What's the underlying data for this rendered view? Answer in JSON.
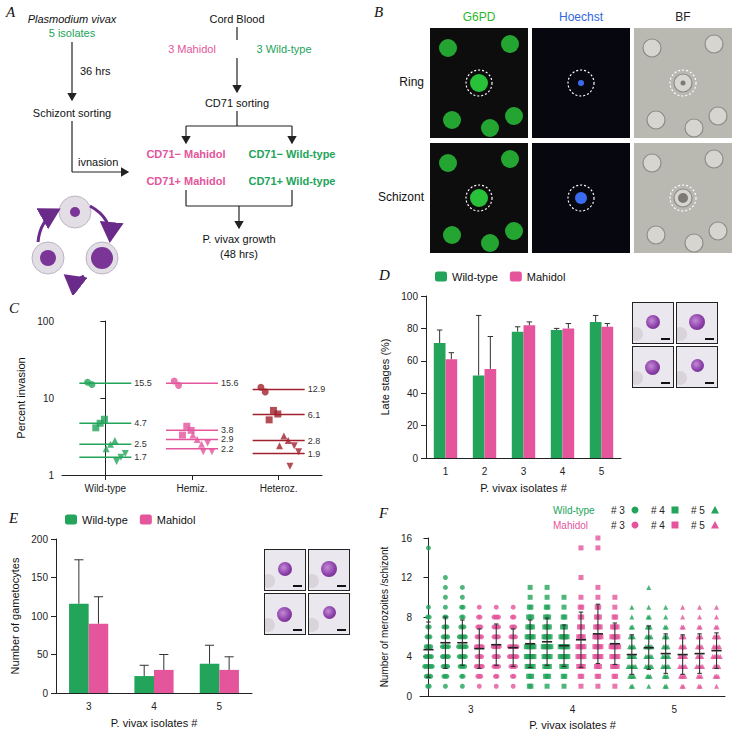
{
  "diagram": {
    "title": "A",
    "parasite": {
      "name": "Plasmodium vivax",
      "count": "5 isolates"
    },
    "culture_time": "36 hrs",
    "schizont_step": "Schizont sorting",
    "invasion_step": "ivnasion",
    "blood": {
      "name": "Cord Blood",
      "donors": [
        "3 Mahidol",
        "3 Wild-type"
      ]
    },
    "blood_step": "CD71 sorting",
    "groups": [
      "CD71− Mahidol",
      "CD71− Wild-type",
      "CD71+ Mahidol",
      "CD71+ Wild-type"
    ],
    "readout": [
      "P. vivax growth",
      "(48 hrs)"
    ]
  },
  "images": {
    "title": "B",
    "columns": [
      "G6PD",
      "Hoechst",
      "BF"
    ],
    "rows": [
      "Ring",
      "Schizont"
    ]
  },
  "chart_data": [
    {
      "title": "C",
      "type": "scatter",
      "ylabel": "Percent invasion",
      "log": "y",
      "ylim": [
        1,
        100
      ],
      "yticks": [
        1,
        10,
        100
      ],
      "grid": false,
      "categories": [
        "Wild-type",
        "Hemiz.",
        "Heteroz."
      ],
      "series": [
        {
          "color": "#22a45a",
          "groups": [
            {
              "marker": "circle",
              "values": [
                16.0,
                15.0
              ],
              "mean": 15.5
            },
            {
              "marker": "square",
              "values": [
                4.1,
                4.7,
                5.3
              ],
              "mean": 4.7
            },
            {
              "marker": "triangle",
              "values": [
                2.2,
                2.5,
                2.8
              ],
              "mean": 2.5
            },
            {
              "marker": "triangle-down",
              "values": [
                1.5,
                1.7,
                1.9
              ],
              "mean": 1.7
            }
          ]
        },
        {
          "color": "#e4559b",
          "groups": [
            {
              "marker": "circle",
              "values": [
                16.6,
                14.6
              ],
              "mean": 15.6
            },
            {
              "marker": "square",
              "values": [
                3.3,
                4.3,
                3.8
              ],
              "mean": 3.8
            },
            {
              "marker": "triangle",
              "values": [
                3.3,
                2.9,
                2.5
              ],
              "mean": 2.9
            },
            {
              "marker": "triangle-down",
              "values": [
                2.0,
                2.6,
                2.0
              ],
              "mean": 2.2
            }
          ]
        },
        {
          "color": "#a0202c",
          "groups": [
            {
              "marker": "circle",
              "values": [
                13.8,
                12.0
              ],
              "mean": 12.9
            },
            {
              "marker": "square",
              "values": [
                5.2,
                6.9,
                6.2
              ],
              "mean": 6.1
            },
            {
              "marker": "triangle",
              "values": [
                2.4,
                3.2,
                2.8
              ],
              "mean": 2.8
            },
            {
              "marker": "triangle-down",
              "values": [
                1.3,
                2.4,
                2.0
              ],
              "mean": 1.9
            }
          ]
        }
      ]
    },
    {
      "title": "D",
      "type": "bar",
      "xlabel": "P. vivax isolates #",
      "ylabel": "Late stages (%)",
      "categories": [
        "1",
        "2",
        "3",
        "4",
        "5"
      ],
      "ylim": [
        0,
        100
      ],
      "yticks": [
        0,
        20,
        40,
        60,
        80,
        100
      ],
      "grid": false,
      "legend": "top-left",
      "series": [
        {
          "name": "Wild-type",
          "color": "#22a45a",
          "values": [
            71,
            51,
            78,
            79,
            84
          ],
          "errors": [
            8,
            37,
            3,
            1,
            4
          ]
        },
        {
          "name": "Mahidol",
          "color": "#e4559b",
          "values": [
            61,
            55,
            82,
            80,
            81
          ],
          "errors": [
            4,
            20,
            2,
            3,
            2
          ]
        }
      ]
    },
    {
      "title": "E",
      "type": "bar",
      "xlabel": "P. vivax isolates #",
      "ylabel": "Number of gametocytes",
      "categories": [
        "3",
        "4",
        "5"
      ],
      "ylim": [
        0,
        200
      ],
      "yticks": [
        0,
        50,
        100,
        150,
        200
      ],
      "grid": false,
      "legend": "top-left",
      "series": [
        {
          "name": "Wild-type",
          "color": "#22a45a",
          "values": [
            116,
            22,
            38
          ],
          "errors": [
            57,
            14,
            24
          ]
        },
        {
          "name": "Mahidol",
          "color": "#e4559b",
          "values": [
            90,
            30,
            30
          ],
          "errors": [
            35,
            20,
            17
          ]
        }
      ]
    },
    {
      "title": "F",
      "type": "scatter",
      "xlabel": "P. vivax isolates #",
      "ylabel": "Number of merozoites /schizont",
      "ylim": [
        0,
        16
      ],
      "yticks": [
        0,
        4,
        8,
        12,
        16
      ],
      "grid": false,
      "legend": "top-right",
      "categories": [
        "3",
        "4",
        "5"
      ],
      "series": [
        {
          "name": "Wild-type",
          "color": "#22a45a"
        },
        {
          "name": "Mahidol",
          "color": "#e4559b"
        }
      ],
      "groups": [
        {
          "key": "# 3",
          "marker": "circle",
          "columns": [
            {
              "series": "Wild-type",
              "values": [
                1,
                1,
                2,
                2,
                2,
                2,
                3,
                3,
                3,
                3,
                3,
                3,
                4,
                4,
                4,
                4,
                4,
                5,
                5,
                5,
                5,
                6,
                6,
                6,
                7,
                7,
                8,
                8,
                9,
                15
              ],
              "mean": 4.7,
              "sd": 2.8
            },
            {
              "series": "Wild-type",
              "values": [
                1,
                2,
                2,
                2,
                3,
                3,
                3,
                3,
                4,
                4,
                4,
                4,
                4,
                5,
                5,
                5,
                5,
                5,
                6,
                6,
                6,
                6,
                7,
                7,
                7,
                8,
                8,
                9,
                10,
                11,
                12
              ],
              "mean": 5.4,
              "sd": 2.6
            },
            {
              "series": "Wild-type",
              "values": [
                1,
                2,
                2,
                3,
                3,
                3,
                3,
                4,
                4,
                4,
                4,
                4,
                5,
                5,
                5,
                5,
                5,
                5,
                6,
                6,
                6,
                6,
                6,
                7,
                7,
                7,
                8,
                8,
                9,
                9,
                10,
                11
              ],
              "mean": 5.4,
              "sd": 2.3
            },
            {
              "series": "Mahidol",
              "values": [
                1,
                2,
                2,
                2,
                3,
                3,
                3,
                3,
                3,
                4,
                4,
                4,
                4,
                5,
                5,
                5,
                5,
                5,
                6,
                6,
                6,
                6,
                7,
                7,
                7,
                8,
                8,
                9
              ],
              "mean": 4.8,
              "sd": 2.0
            },
            {
              "series": "Mahidol",
              "values": [
                1,
                2,
                2,
                3,
                3,
                3,
                3,
                4,
                4,
                4,
                4,
                5,
                5,
                5,
                5,
                5,
                6,
                6,
                6,
                6,
                7,
                7,
                7,
                7,
                8,
                8,
                8,
                8,
                9
              ],
              "mean": 5.2,
              "sd": 2.1
            },
            {
              "series": "Mahidol",
              "values": [
                1,
                2,
                2,
                3,
                3,
                3,
                3,
                4,
                4,
                4,
                4,
                4,
                4,
                5,
                5,
                5,
                5,
                5,
                5,
                6,
                6,
                6,
                6,
                7,
                7,
                7,
                8,
                8,
                9
              ],
              "mean": 4.9,
              "sd": 1.9
            }
          ]
        },
        {
          "key": "# 4",
          "marker": "square",
          "columns": [
            {
              "series": "Wild-type",
              "values": [
                1,
                1,
                2,
                2,
                2,
                3,
                3,
                3,
                3,
                3,
                4,
                4,
                4,
                4,
                4,
                4,
                5,
                5,
                5,
                5,
                5,
                5,
                6,
                6,
                6,
                6,
                6,
                7,
                7,
                7,
                7,
                8,
                8,
                8,
                9,
                9,
                10,
                11
              ],
              "mean": 5.3,
              "sd": 2.4
            },
            {
              "series": "Wild-type",
              "values": [
                1,
                2,
                2,
                2,
                3,
                3,
                3,
                3,
                4,
                4,
                4,
                4,
                4,
                5,
                5,
                5,
                5,
                5,
                5,
                6,
                6,
                6,
                6,
                6,
                7,
                7,
                7,
                7,
                8,
                8,
                8,
                9,
                9,
                10,
                11
              ],
              "mean": 5.5,
              "sd": 2.4
            },
            {
              "series": "Wild-type",
              "values": [
                1,
                2,
                2,
                3,
                3,
                3,
                3,
                4,
                4,
                4,
                4,
                4,
                4,
                5,
                5,
                5,
                5,
                5,
                5,
                6,
                6,
                6,
                6,
                6,
                7,
                7,
                7,
                8,
                8,
                9,
                10
              ],
              "mean": 5.1,
              "sd": 2.1
            },
            {
              "series": "Mahidol",
              "values": [
                1,
                2,
                2,
                3,
                3,
                3,
                3,
                4,
                4,
                4,
                4,
                4,
                5,
                5,
                5,
                5,
                5,
                6,
                6,
                6,
                6,
                7,
                7,
                7,
                8,
                8,
                9,
                9,
                10,
                12,
                15
              ],
              "mean": 5.7,
              "sd": 2.8
            },
            {
              "series": "Mahidol",
              "values": [
                1,
                2,
                2,
                3,
                3,
                3,
                4,
                4,
                4,
                4,
                4,
                5,
                5,
                5,
                5,
                5,
                6,
                6,
                6,
                6,
                6,
                7,
                7,
                7,
                7,
                8,
                8,
                8,
                9,
                9,
                10,
                11,
                15,
                16
              ],
              "mean": 6.3,
              "sd": 3.0
            },
            {
              "series": "Mahidol",
              "values": [
                1,
                2,
                2,
                3,
                3,
                3,
                3,
                4,
                4,
                4,
                4,
                4,
                5,
                5,
                5,
                5,
                5,
                5,
                6,
                6,
                6,
                6,
                6,
                7,
                7,
                7,
                7,
                8,
                8,
                9,
                10
              ],
              "mean": 5.3,
              "sd": 2.1
            }
          ]
        },
        {
          "key": "# 5",
          "marker": "triangle",
          "columns": [
            {
              "series": "Wild-type",
              "values": [
                1,
                1,
                2,
                2,
                2,
                2,
                3,
                3,
                3,
                3,
                3,
                3,
                4,
                4,
                4,
                4,
                4,
                5,
                5,
                5,
                5,
                6,
                6,
                6,
                7,
                7,
                8,
                9
              ],
              "mean": 4.2,
              "sd": 2.0
            },
            {
              "series": "Wild-type",
              "values": [
                1,
                2,
                2,
                2,
                3,
                3,
                3,
                3,
                3,
                4,
                4,
                4,
                4,
                4,
                5,
                5,
                5,
                5,
                5,
                6,
                6,
                6,
                6,
                7,
                7,
                7,
                8,
                8,
                9,
                11
              ],
              "mean": 4.9,
              "sd": 2.2
            },
            {
              "series": "Wild-type",
              "values": [
                1,
                1,
                2,
                2,
                2,
                3,
                3,
                3,
                3,
                3,
                4,
                4,
                4,
                4,
                4,
                5,
                5,
                5,
                5,
                6,
                6,
                6,
                7,
                7,
                8,
                9
              ],
              "mean": 4.3,
              "sd": 2.0
            },
            {
              "series": "Mahidol",
              "values": [
                1,
                1,
                2,
                2,
                2,
                2,
                3,
                3,
                3,
                3,
                3,
                4,
                4,
                4,
                4,
                4,
                5,
                5,
                5,
                5,
                6,
                6,
                6,
                7,
                7,
                8,
                9
              ],
              "mean": 4.2,
              "sd": 2.0
            },
            {
              "series": "Mahidol",
              "values": [
                1,
                1,
                2,
                2,
                2,
                3,
                3,
                3,
                3,
                3,
                4,
                4,
                4,
                4,
                5,
                5,
                5,
                5,
                6,
                6,
                6,
                7,
                7,
                8,
                9
              ],
              "mean": 4.3,
              "sd": 2.0
            },
            {
              "series": "Mahidol",
              "values": [
                1,
                2,
                2,
                2,
                3,
                3,
                3,
                3,
                4,
                4,
                4,
                4,
                4,
                4,
                5,
                5,
                5,
                5,
                5,
                6,
                6,
                6,
                6,
                7,
                7,
                8,
                9
              ],
              "mean": 4.6,
              "sd": 1.8
            }
          ]
        }
      ]
    }
  ]
}
